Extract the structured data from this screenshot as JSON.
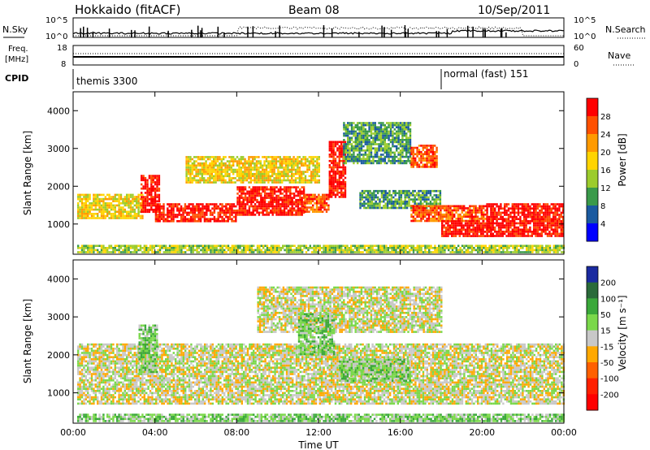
{
  "header": {
    "station": "Hokkaido (fitACF)",
    "beam": "Beam 08",
    "date": "10/Sep/2011"
  },
  "labels": {
    "nsky": "N.Sky",
    "nsearch": "N.Search",
    "freq_line1": "Freq.",
    "freq_line2": "[MHz]",
    "nave": "Nave",
    "cpid": "CPID"
  },
  "noise_axis": {
    "ticks": [
      "10^5",
      "10^0"
    ]
  },
  "freq_axis": {
    "ticks_left": [
      "18",
      "8"
    ],
    "ticks_right": [
      "60",
      "0"
    ]
  },
  "cpid_segments": [
    {
      "name": "themis",
      "label": "themis 3300",
      "start_hour": 0,
      "end_hour": 18
    },
    {
      "name": "normal-fast",
      "label": "normal (fast) 151",
      "start_hour": 18,
      "end_hour": 24
    }
  ],
  "chart_data": [
    {
      "type": "heatmap",
      "name": "power",
      "ylabel": "Slant Range [km]",
      "xlim": [
        0,
        24
      ],
      "ylim": [
        200,
        4500
      ],
      "yticks": [
        "1000",
        "2000",
        "3000",
        "4000"
      ],
      "colorbar": {
        "label": "Power [dB]",
        "ticks": [
          "28",
          "24",
          "20",
          "16",
          "12",
          "8",
          "4"
        ],
        "colors": [
          "#ff0000",
          "#ff5000",
          "#ff9a00",
          "#ffd400",
          "#9ccc2c",
          "#3a9a4a",
          "#1a5aa0",
          "#0000ff"
        ]
      },
      "bands": [
        {
          "t0": 0.2,
          "t1": 3.4,
          "r0": 1150,
          "r1": 1800,
          "level": 3
        },
        {
          "t0": 3.3,
          "t1": 4.2,
          "r0": 1300,
          "r1": 2300,
          "level": 0
        },
        {
          "t0": 4.0,
          "t1": 8.0,
          "r0": 1050,
          "r1": 1550,
          "level": 0
        },
        {
          "t0": 8.0,
          "t1": 11.3,
          "r0": 1250,
          "r1": 2000,
          "level": 0
        },
        {
          "t0": 11.3,
          "t1": 12.5,
          "r0": 1350,
          "r1": 1800,
          "level": 1
        },
        {
          "t0": 12.5,
          "t1": 13.3,
          "r0": 1700,
          "r1": 3200,
          "level": 0
        },
        {
          "t0": 13.2,
          "t1": 16.5,
          "r0": 2600,
          "r1": 3700,
          "level": 5
        },
        {
          "t0": 16.5,
          "t1": 17.8,
          "r0": 2500,
          "r1": 3100,
          "level": 1
        },
        {
          "t0": 14.0,
          "t1": 18.0,
          "r0": 1400,
          "r1": 1900,
          "level": 5
        },
        {
          "t0": 16.5,
          "t1": 20.2,
          "r0": 1100,
          "r1": 1500,
          "level": 1
        },
        {
          "t0": 18.0,
          "t1": 20.5,
          "r0": 700,
          "r1": 1100,
          "level": 0
        },
        {
          "t0": 20.2,
          "t1": 24.0,
          "r0": 700,
          "r1": 1550,
          "level": 0
        },
        {
          "t0": 5.5,
          "t1": 12.0,
          "r0": 2100,
          "r1": 2800,
          "level": 3
        },
        {
          "t0": 0.2,
          "t1": 24.0,
          "r0": 250,
          "r1": 450,
          "level": 4
        }
      ]
    },
    {
      "type": "heatmap",
      "name": "velocity",
      "ylabel": "Slant Range [km]",
      "xlabel": "Time UT",
      "xlim": [
        0,
        24
      ],
      "ylim": [
        200,
        4500
      ],
      "xticks": [
        "00:00",
        "04:00",
        "08:00",
        "12:00",
        "16:00",
        "20:00",
        "00:00"
      ],
      "yticks": [
        "1000",
        "2000",
        "3000",
        "4000"
      ],
      "colorbar": {
        "label": "Velocity [m s⁻¹]",
        "ticks": [
          "200",
          "100",
          "50",
          "15",
          "-15",
          "-50",
          "-100",
          "-200"
        ],
        "colors": [
          "#1a2aa0",
          "#2a6a3a",
          "#3aa83a",
          "#7ad84a",
          "#c8c8c8",
          "#ffa800",
          "#ff6000",
          "#ff2000",
          "#ff0000"
        ]
      },
      "bands": [
        {
          "t0": 0.2,
          "t1": 24.0,
          "r0": 700,
          "r1": 2300,
          "level": 4
        },
        {
          "t0": 9.0,
          "t1": 18.0,
          "r0": 2600,
          "r1": 3800,
          "level": 4
        },
        {
          "t0": 13.0,
          "t1": 16.5,
          "r0": 1300,
          "r1": 1900,
          "level": 3
        },
        {
          "t0": 11.0,
          "t1": 12.8,
          "r0": 2000,
          "r1": 3100,
          "level": 3
        },
        {
          "t0": 3.2,
          "t1": 4.1,
          "r0": 1500,
          "r1": 2800,
          "level": 3
        },
        {
          "t0": 0.2,
          "t1": 24.0,
          "r0": 250,
          "r1": 450,
          "level": 3
        }
      ]
    }
  ]
}
